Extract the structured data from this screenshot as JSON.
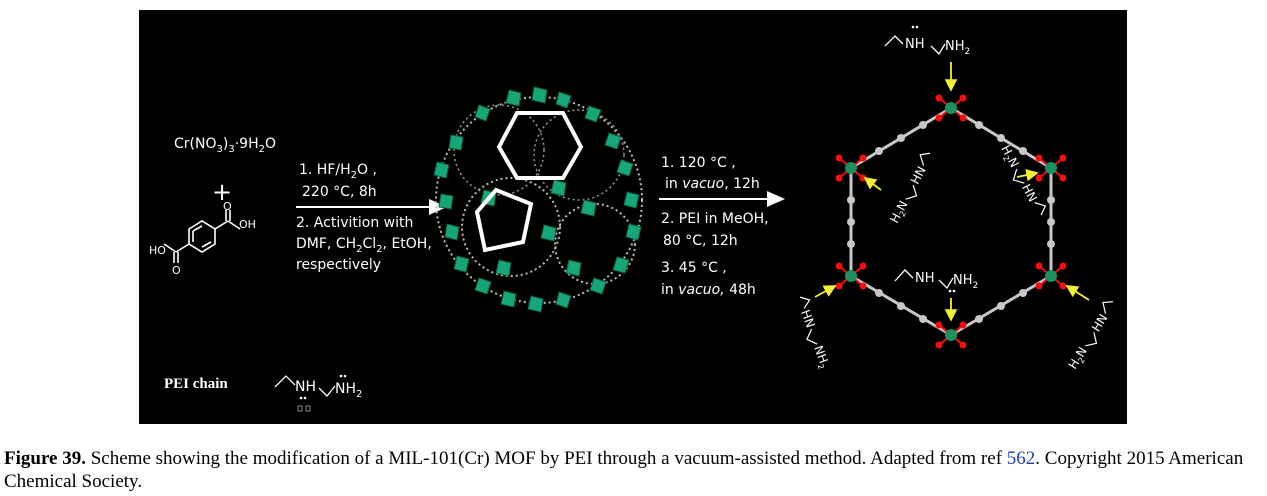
{
  "reactant": {
    "salt_parts": [
      "Cr(NO",
      "3",
      ")",
      "3",
      "·9H",
      "2",
      "O"
    ],
    "plus": "+",
    "acid_oh_top": "OH",
    "acid_oh_bottom": "HO",
    "acid_o_top": "O",
    "acid_o_bottom": "O"
  },
  "step1": {
    "l1_parts": [
      "1.  HF/H",
      "2",
      "O ,"
    ],
    "l2": "220 °C, 8h",
    "l3": "2. Activition with",
    "l4_parts": [
      "DMF, CH",
      "2",
      "Cl",
      "2",
      ", EtOH,"
    ],
    "l5": "respectively"
  },
  "step2": {
    "l1": "1.  120 °C ,",
    "l2_a": "in ",
    "l2_b": "vacuo",
    "l2_c": ", 12h",
    "l3": "2. PEI in MeOH,",
    "l4": "80 °C, 12h",
    "l5": "3.  45 °C ,",
    "l6_a": "in ",
    "l6_b": "vacuo,",
    "l6_c": "  48h"
  },
  "pei": {
    "label": "PEI chain",
    "nh": "NH",
    "nh2_parts": [
      "NH",
      "2"
    ],
    "h2n_parts": [
      "H",
      "2",
      "N"
    ],
    "hn": "HN"
  },
  "caption": {
    "label": "Figure 39.",
    "text": " Scheme showing the modification of a MIL-101(Cr) MOF by PEI through a vacuum-assisted method. Adapted from ref ",
    "ref": "562",
    "tail": ". Copyright 2015 American Chemical Society."
  },
  "colors": {
    "background": "#000000",
    "chromium": "#1f8f5f",
    "polyhedra": "#19a57a",
    "oxygen": "#ee1111",
    "carbon": "#c8c8c8",
    "arrow_yellow": "#f2ee3a",
    "ref_link": "#1f3fa8"
  }
}
